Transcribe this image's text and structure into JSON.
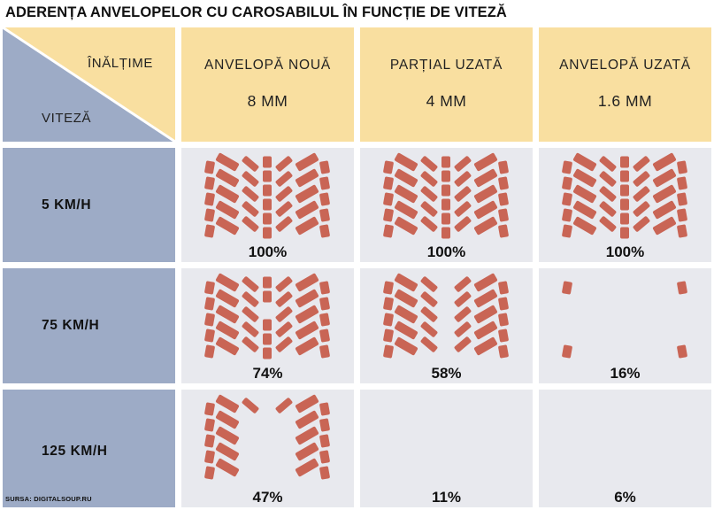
{
  "title": "ADERENȚA ANVELOPELOR CU CAROSABILUL ÎN FUNCȚIE DE VITEZĂ",
  "corner": {
    "top_label": "ÎNĂLȚIME",
    "bottom_label": "VITEZĂ"
  },
  "columns": [
    {
      "name": "ANVELOPĂ NOUĂ",
      "depth": "8 MM"
    },
    {
      "name": "PARȚIAL UZATĂ",
      "depth": "4 MM"
    },
    {
      "name": "ANVELOPĂ UZATĂ",
      "depth": "1.6 MM"
    }
  ],
  "rows": [
    {
      "speed": "5 KM/H",
      "cells": [
        {
          "label": "100%",
          "grip": 1.0
        },
        {
          "label": "100%",
          "grip": 1.0
        },
        {
          "label": "100%",
          "grip": 1.0
        }
      ]
    },
    {
      "speed": "75 KM/H",
      "cells": [
        {
          "label": "74%",
          "grip": 0.74
        },
        {
          "label": "58%",
          "grip": 0.58
        },
        {
          "label": "16%",
          "grip": 0.16
        }
      ]
    },
    {
      "speed": "125 KM/H",
      "cells": [
        {
          "label": "47%",
          "grip": 0.47
        },
        {
          "label": "11%",
          "grip": 0.11
        },
        {
          "label": "6%",
          "grip": 0.06
        }
      ]
    }
  ],
  "source": "SURSA: DIGITALSOUP.RU",
  "colors": {
    "header_bg": "#f9dfa0",
    "row_header_bg": "#9dabc6",
    "cell_bg": "#e8e9ee",
    "tread_contact": "#c96555"
  }
}
